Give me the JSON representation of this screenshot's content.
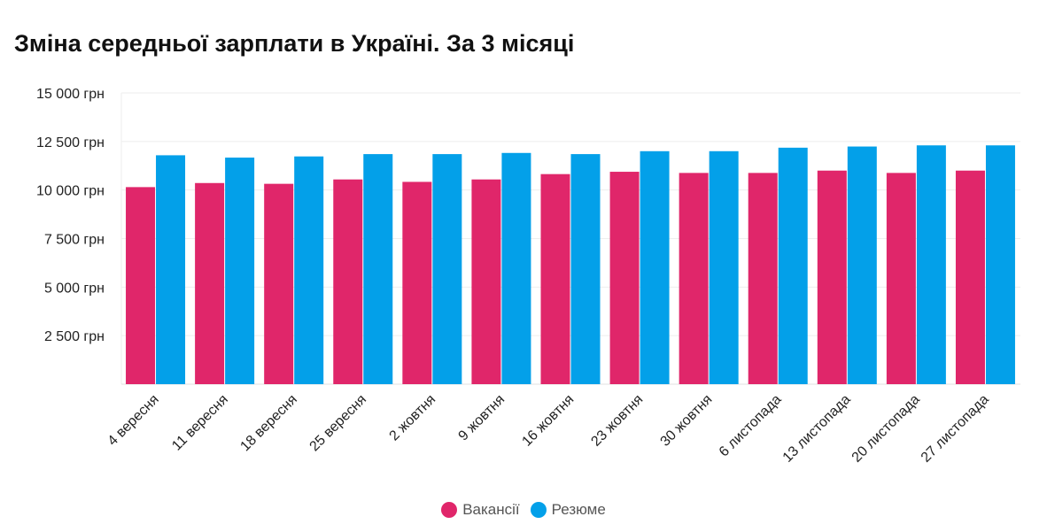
{
  "chart_data": {
    "type": "bar",
    "title": "Зміна середньої зарплати в Україні. За 3 місяці",
    "categories": [
      "4 вересня",
      "11 вересня",
      "18 вересня",
      "25 вересня",
      "2 жовтня",
      "9 жовтня",
      "16 жовтня",
      "23 жовтня",
      "30 жовтня",
      "6 листопада",
      "13 листопада",
      "20 листопада",
      "27 листопада"
    ],
    "series": [
      {
        "name": "Вакансії",
        "color": "#e0266a",
        "values": [
          10150,
          10360,
          10320,
          10545,
          10420,
          10545,
          10820,
          10940,
          10880,
          10880,
          11000,
          10880,
          11000
        ]
      },
      {
        "name": "Резюме",
        "color": "#03a0e9",
        "values": [
          11790,
          11670,
          11730,
          11850,
          11850,
          11910,
          11850,
          12000,
          12000,
          12180,
          12240,
          12300,
          12300
        ]
      }
    ],
    "ylim": [
      0,
      15000
    ],
    "yticks": [
      2500,
      5000,
      7500,
      10000,
      12500,
      15000
    ],
    "ytick_labels": [
      "2 500 грн",
      "5 000 грн",
      "7 500 грн",
      "10 000 грн",
      "12 500 грн",
      "15 000 грн"
    ],
    "grid": true,
    "legend": "bottom"
  }
}
